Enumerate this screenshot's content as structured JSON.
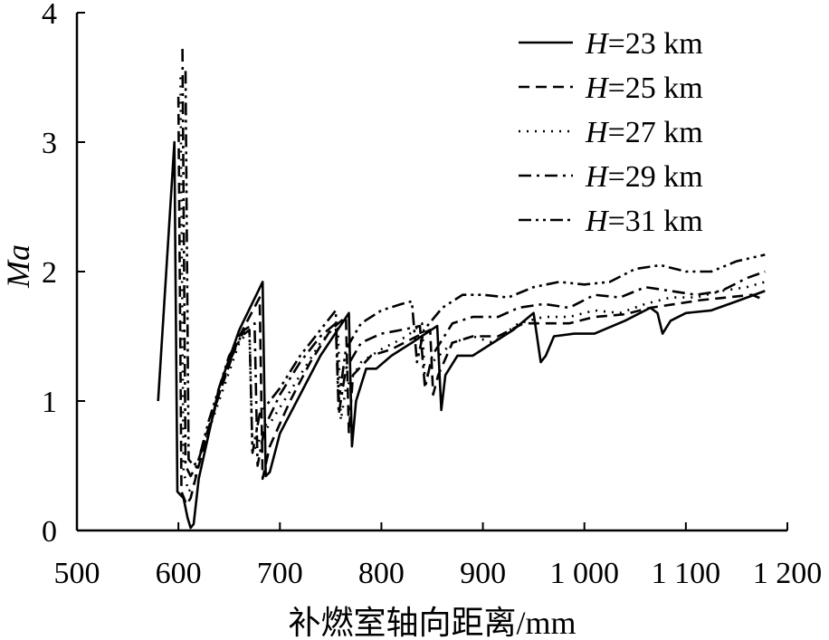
{
  "chart_data": {
    "type": "line",
    "title": "",
    "xlabel": "补燃室轴向距离/mm",
    "ylabel": "Ma",
    "xlim": [
      500,
      1200
    ],
    "ylim": [
      0,
      4
    ],
    "xticks": [
      500,
      600,
      700,
      800,
      900,
      1000,
      1100,
      1200
    ],
    "xtick_labels": [
      "500",
      "600",
      "700",
      "800",
      "900",
      "1 000",
      "1 100",
      "1 200"
    ],
    "yticks": [
      0,
      1,
      2,
      3,
      4
    ],
    "ytick_labels": [
      "0",
      "1",
      "2",
      "3",
      "4"
    ],
    "grid": false,
    "legend": {
      "placement": "top-right"
    },
    "series": [
      {
        "name_prefix": "H",
        "name_value": "=23 km",
        "dash": "solid",
        "points": [
          [
            580,
            1.0
          ],
          [
            596,
            3.0
          ],
          [
            599,
            0.3
          ],
          [
            605,
            0.25
          ],
          [
            609,
            0.1
          ],
          [
            612,
            0.02
          ],
          [
            615,
            0.05
          ],
          [
            620,
            0.4
          ],
          [
            640,
            1.1
          ],
          [
            660,
            1.55
          ],
          [
            683,
            1.92
          ],
          [
            686,
            0.42
          ],
          [
            690,
            0.45
          ],
          [
            700,
            0.75
          ],
          [
            720,
            1.05
          ],
          [
            740,
            1.35
          ],
          [
            768,
            1.68
          ],
          [
            771,
            0.65
          ],
          [
            775,
            1.0
          ],
          [
            785,
            1.25
          ],
          [
            795,
            1.25
          ],
          [
            810,
            1.35
          ],
          [
            830,
            1.45
          ],
          [
            855,
            1.58
          ],
          [
            859,
            0.93
          ],
          [
            863,
            1.2
          ],
          [
            875,
            1.35
          ],
          [
            890,
            1.35
          ],
          [
            910,
            1.45
          ],
          [
            930,
            1.55
          ],
          [
            950,
            1.68
          ],
          [
            957,
            1.3
          ],
          [
            962,
            1.35
          ],
          [
            970,
            1.5
          ],
          [
            990,
            1.52
          ],
          [
            1010,
            1.52
          ],
          [
            1040,
            1.62
          ],
          [
            1065,
            1.72
          ],
          [
            1072,
            1.68
          ],
          [
            1077,
            1.52
          ],
          [
            1085,
            1.62
          ],
          [
            1100,
            1.68
          ],
          [
            1125,
            1.7
          ],
          [
            1150,
            1.77
          ],
          [
            1178,
            1.85
          ]
        ]
      },
      {
        "name_prefix": "H",
        "name_value": "=25 km",
        "dash": "dashed",
        "points": [
          [
            600,
            3.35
          ],
          [
            603,
            0.3
          ],
          [
            608,
            0.2
          ],
          [
            612,
            0.25
          ],
          [
            620,
            0.5
          ],
          [
            640,
            1.05
          ],
          [
            660,
            1.5
          ],
          [
            680,
            1.8
          ],
          [
            683,
            0.4
          ],
          [
            690,
            0.65
          ],
          [
            710,
            1.0
          ],
          [
            730,
            1.3
          ],
          [
            750,
            1.55
          ],
          [
            765,
            1.65
          ],
          [
            768,
            0.75
          ],
          [
            772,
            1.2
          ],
          [
            790,
            1.35
          ],
          [
            810,
            1.4
          ],
          [
            835,
            1.5
          ],
          [
            848,
            1.55
          ],
          [
            851,
            1.05
          ],
          [
            856,
            1.2
          ],
          [
            870,
            1.45
          ],
          [
            890,
            1.5
          ],
          [
            915,
            1.5
          ],
          [
            940,
            1.6
          ],
          [
            960,
            1.6
          ],
          [
            985,
            1.6
          ],
          [
            1010,
            1.65
          ],
          [
            1040,
            1.67
          ],
          [
            1065,
            1.72
          ],
          [
            1090,
            1.75
          ],
          [
            1115,
            1.78
          ],
          [
            1140,
            1.8
          ],
          [
            1165,
            1.82
          ],
          [
            1178,
            1.78
          ]
        ]
      },
      {
        "name_prefix": "H",
        "name_value": "=27 km",
        "dash": "dotted",
        "points": [
          [
            602,
            3.5
          ],
          [
            605,
            0.45
          ],
          [
            610,
            0.3
          ],
          [
            615,
            0.35
          ],
          [
            620,
            0.55
          ],
          [
            640,
            1.0
          ],
          [
            660,
            1.45
          ],
          [
            670,
            1.55
          ],
          [
            673,
            0.6
          ],
          [
            680,
            0.7
          ],
          [
            700,
            0.95
          ],
          [
            720,
            1.2
          ],
          [
            740,
            1.45
          ],
          [
            757,
            1.6
          ],
          [
            760,
            0.85
          ],
          [
            765,
            1.1
          ],
          [
            780,
            1.3
          ],
          [
            800,
            1.4
          ],
          [
            825,
            1.5
          ],
          [
            840,
            1.6
          ],
          [
            843,
            1.15
          ],
          [
            850,
            1.3
          ],
          [
            870,
            1.45
          ],
          [
            890,
            1.5
          ],
          [
            910,
            1.45
          ],
          [
            935,
            1.6
          ],
          [
            960,
            1.65
          ],
          [
            985,
            1.65
          ],
          [
            1010,
            1.7
          ],
          [
            1035,
            1.68
          ],
          [
            1060,
            1.75
          ],
          [
            1085,
            1.8
          ],
          [
            1110,
            1.8
          ],
          [
            1135,
            1.85
          ],
          [
            1160,
            1.88
          ],
          [
            1178,
            1.92
          ]
        ]
      },
      {
        "name_prefix": "H",
        "name_value": "=29 km",
        "dash": "dashdot",
        "points": [
          [
            604,
            3.72
          ],
          [
            607,
            0.5
          ],
          [
            612,
            0.42
          ],
          [
            618,
            0.5
          ],
          [
            630,
            0.8
          ],
          [
            650,
            1.3
          ],
          [
            665,
            1.55
          ],
          [
            675,
            1.6
          ],
          [
            678,
            0.5
          ],
          [
            685,
            0.8
          ],
          [
            700,
            1.05
          ],
          [
            720,
            1.3
          ],
          [
            740,
            1.5
          ],
          [
            755,
            1.6
          ],
          [
            758,
            0.9
          ],
          [
            765,
            1.25
          ],
          [
            780,
            1.45
          ],
          [
            800,
            1.52
          ],
          [
            820,
            1.55
          ],
          [
            838,
            1.58
          ],
          [
            843,
            1.1
          ],
          [
            850,
            1.35
          ],
          [
            870,
            1.6
          ],
          [
            890,
            1.65
          ],
          [
            915,
            1.65
          ],
          [
            935,
            1.72
          ],
          [
            960,
            1.75
          ],
          [
            985,
            1.72
          ],
          [
            1010,
            1.82
          ],
          [
            1035,
            1.8
          ],
          [
            1060,
            1.88
          ],
          [
            1085,
            1.85
          ],
          [
            1110,
            1.82
          ],
          [
            1135,
            1.85
          ],
          [
            1160,
            1.95
          ],
          [
            1178,
            2.0
          ]
        ]
      },
      {
        "name_prefix": "H",
        "name_value": "=31 km",
        "dash": "dashdotdot",
        "points": [
          [
            607,
            3.55
          ],
          [
            610,
            0.55
          ],
          [
            615,
            0.5
          ],
          [
            620,
            0.55
          ],
          [
            630,
            0.85
          ],
          [
            650,
            1.35
          ],
          [
            662,
            1.5
          ],
          [
            670,
            1.55
          ],
          [
            673,
            0.6
          ],
          [
            680,
            0.9
          ],
          [
            700,
            1.1
          ],
          [
            720,
            1.35
          ],
          [
            740,
            1.55
          ],
          [
            755,
            1.7
          ],
          [
            758,
            1.0
          ],
          [
            765,
            1.4
          ],
          [
            780,
            1.6
          ],
          [
            800,
            1.7
          ],
          [
            820,
            1.75
          ],
          [
            830,
            1.77
          ],
          [
            835,
            1.3
          ],
          [
            842,
            1.55
          ],
          [
            860,
            1.72
          ],
          [
            880,
            1.82
          ],
          [
            900,
            1.82
          ],
          [
            925,
            1.8
          ],
          [
            950,
            1.88
          ],
          [
            975,
            1.92
          ],
          [
            1000,
            1.9
          ],
          [
            1025,
            1.92
          ],
          [
            1050,
            2.02
          ],
          [
            1075,
            2.05
          ],
          [
            1100,
            2.0
          ],
          [
            1125,
            2.0
          ],
          [
            1150,
            2.08
          ],
          [
            1178,
            2.13
          ]
        ]
      }
    ]
  },
  "colors": {
    "line": "#000000",
    "background": "#ffffff"
  }
}
